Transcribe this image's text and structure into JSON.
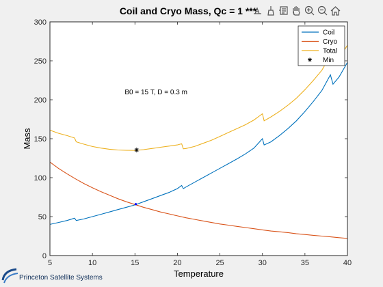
{
  "chart_data": {
    "type": "line",
    "title": "Coil and Cryo Mass, Qc = 1 ***",
    "xlabel": "Temperature",
    "ylabel": "Mass",
    "xlim": [
      5,
      40
    ],
    "ylim": [
      0,
      300
    ],
    "xticks": [
      5,
      10,
      15,
      20,
      25,
      30,
      35,
      40
    ],
    "yticks": [
      0,
      50,
      100,
      150,
      200,
      250,
      300
    ],
    "grid": false,
    "legend_position": "top-right",
    "annotation": "B0 = 15 T, D = 0.3 m",
    "series": [
      {
        "name": "Coil",
        "color": "#0072bd",
        "x": [
          5,
          6,
          7,
          7.9,
          8.1,
          9,
          10,
          11,
          12,
          13,
          14,
          15,
          16,
          17,
          18,
          19,
          20,
          20.5,
          20.7,
          21,
          22,
          23,
          24,
          25,
          26,
          27,
          28,
          29,
          30,
          30.2,
          31,
          32,
          33,
          34,
          35,
          36,
          37,
          38,
          38.3,
          39,
          40
        ],
        "y": [
          40,
          42.5,
          45,
          48,
          45,
          47,
          50,
          53,
          56,
          59,
          62,
          65,
          69,
          73,
          77,
          81,
          86,
          90,
          86,
          88,
          94,
          100,
          106,
          112,
          118,
          124,
          130.5,
          138,
          150,
          142,
          146,
          154,
          163,
          173,
          185,
          198,
          212,
          232,
          220,
          229,
          248
        ]
      },
      {
        "name": "Cryo",
        "color": "#d95319",
        "x": [
          5,
          6,
          7,
          8,
          9,
          10,
          11,
          12,
          13,
          14,
          15,
          16,
          17,
          18,
          19,
          20,
          21,
          22,
          23,
          24,
          25,
          26,
          27,
          28,
          29,
          30,
          31,
          32,
          33,
          34,
          35,
          36,
          37,
          38,
          39,
          40
        ],
        "y": [
          120,
          112,
          105,
          98.5,
          92.5,
          87,
          82,
          77.5,
          73,
          69,
          65.5,
          62,
          59,
          56,
          53.5,
          51,
          48.5,
          46.5,
          44.5,
          42.5,
          40.5,
          39,
          37.5,
          36,
          34.5,
          33,
          31.5,
          30.5,
          29.5,
          28,
          27,
          26,
          25,
          24,
          23,
          22
        ]
      },
      {
        "name": "Total",
        "color": "#edb120",
        "x": [
          5,
          6,
          7,
          7.9,
          8.1,
          9,
          10,
          11,
          12,
          13,
          14,
          15,
          16,
          17,
          18,
          19,
          20,
          20.5,
          20.7,
          21,
          22,
          23,
          24,
          25,
          26,
          27,
          28,
          29,
          30,
          30.2,
          31,
          32,
          33,
          34,
          35,
          36,
          37,
          38,
          38.3,
          39,
          40
        ],
        "y": [
          161,
          157,
          154,
          151,
          146,
          143,
          140,
          138,
          136.5,
          135.5,
          135.2,
          135,
          136,
          137.5,
          139,
          140.5,
          142,
          143.5,
          137,
          137.5,
          140,
          144,
          148,
          153,
          158,
          163,
          168,
          174,
          182,
          173,
          178,
          185,
          193,
          202,
          213,
          225,
          238,
          257,
          245,
          253,
          270
        ]
      }
    ],
    "markers": [
      {
        "name": "Min",
        "symbol": "*",
        "x": 15.2,
        "y": 135.5
      },
      {
        "name": "crossing",
        "symbol": ".",
        "x": 15.1,
        "y": 66,
        "color": "#0000ff"
      }
    ]
  },
  "logo": {
    "text": "Princeton Satellite Systems"
  },
  "colors": {
    "figure_bg": "#f0f0f0",
    "axes_bg": "#ffffff",
    "axis_color": "#262626"
  }
}
